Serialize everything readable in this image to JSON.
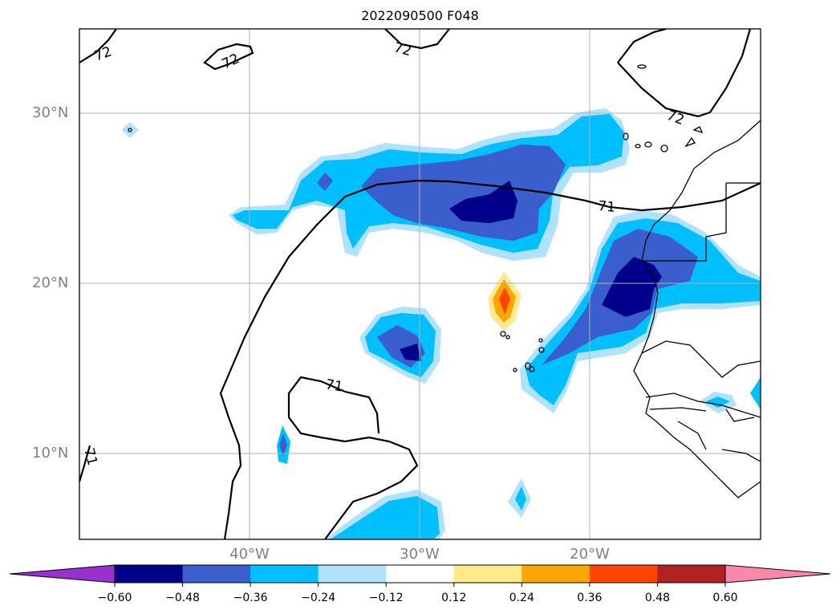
{
  "title": "2022090500 F048",
  "map": {
    "lat_labels": [
      "30°N",
      "20°N",
      "10°N"
    ],
    "lon_labels": [
      "40°W",
      "30°W",
      "20°W"
    ],
    "contour_labels": [
      "72",
      "72",
      "72",
      "72",
      "71",
      "71",
      "71"
    ]
  },
  "colorbar": {
    "ticks": [
      "−0.60",
      "−0.48",
      "−0.36",
      "−0.24",
      "−0.12",
      "0.12",
      "0.24",
      "0.36",
      "0.48",
      "0.60"
    ],
    "colors": [
      "#9b30d0",
      "#00008b",
      "#3a5fcd",
      "#00bfff",
      "#b0e2ff",
      "#ffffff",
      "#fdea8d",
      "#ffa500",
      "#ff4500",
      "#b22222",
      "#ff88aa",
      "#ff88aa"
    ]
  },
  "fill_colors": {
    "light_blue": "#b0e2ff",
    "blue": "#00bfff",
    "mid_blue": "#3a5fcd",
    "dark_blue": "#00008b",
    "yellow": "#fdea8d",
    "orange": "#ffa500",
    "red_orange": "#ff4500"
  }
}
